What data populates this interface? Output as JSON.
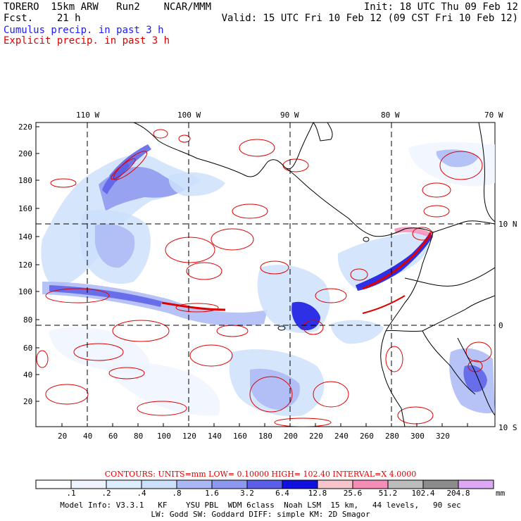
{
  "header": {
    "left1": "TORERO  15km ARW   Run2    NCAR/MMM",
    "left2": "Fcst.    21 h",
    "right1": "Init: 18 UTC Thu 09 Feb 12",
    "right2": "Valid: 15 UTC Fri 10 Feb 12 (09 CST Fri 10 Feb 12)"
  },
  "legend": {
    "cumulus": "Cumulus precip. in past 3 h",
    "explicit": "Explicit precip. in past 3 h"
  },
  "map": {
    "lon_labels": [
      "110 W",
      "100 W",
      "90 W",
      "80 W",
      "70 W"
    ],
    "lat_labels": [
      "10 N",
      "0",
      "10 S"
    ],
    "x_ticks": [
      "20",
      "40",
      "60",
      "80",
      "100",
      "120",
      "140",
      "160",
      "180",
      "200",
      "220",
      "240",
      "260",
      "280",
      "300",
      "320"
    ],
    "y_ticks": [
      "220",
      "200",
      "180",
      "160",
      "140",
      "120",
      "100",
      "80",
      "60",
      "40",
      "20"
    ]
  },
  "contours": {
    "text": "CONTOURS:  UNITS=mm  LOW= 0.10000       HIGH= 102.40      INTERVAL=X  4.0000"
  },
  "colorbar": {
    "labels": [
      ".1",
      ".2",
      ".4",
      ".8",
      "1.6",
      "3.2",
      "6.4",
      "12.8",
      "25.6",
      "51.2",
      "102.4",
      "204.8"
    ],
    "unit": "mm",
    "colors": [
      "#ffffff",
      "#eef4ff",
      "#ddeeff",
      "#cde0fb",
      "#aab8f5",
      "#8c97ef",
      "#5a5ee8",
      "#1010e0",
      "#f6c6cc",
      "#f58db8",
      "#bdbdbd",
      "#8c8c8c",
      "#dca8f5"
    ]
  },
  "model_info": {
    "line1": "Model Info: V3.3.1   KF    YSU PBL  WDM 6class  Noah LSM  15 km,   44 levels,   90 sec",
    "line2": "LW: Godd SW: Goddard DIFF: simple KM: 2D Smagor"
  }
}
